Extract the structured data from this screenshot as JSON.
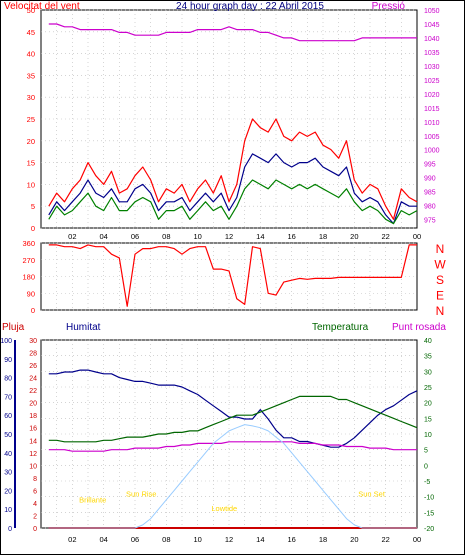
{
  "title": "24 hour graph day : 22 Abril 2015",
  "colors": {
    "background": "#ffffff",
    "wind": "#ff0000",
    "wind_avg": "#00008b",
    "wind_dir_gust": "#008000",
    "pressure": "#cc00cc",
    "rain": "#cc0000",
    "humidity": "#00008b",
    "temperature": "#006600",
    "dewpoint": "#cc00cc",
    "solar": "#99ccff",
    "sun_label": "#ffd700",
    "axis": "#000000"
  },
  "x_ticks": [
    "02",
    "04",
    "06",
    "08",
    "10",
    "12",
    "14",
    "16",
    "18",
    "20",
    "22",
    "00"
  ],
  "chart_data": [
    {
      "type": "line",
      "panel": "wind_pressure",
      "left_axis_label": "Velocitat del vent",
      "right_axis_label": "Pressió",
      "left_ticks": [
        0,
        5,
        10,
        15,
        20,
        25,
        30,
        35,
        40,
        45,
        50
      ],
      "right_ticks": [
        975,
        980,
        985,
        990,
        995,
        1000,
        1005,
        1010,
        1015,
        1020,
        1025,
        1030,
        1035,
        1040,
        1045,
        1050
      ],
      "ylim_left": [
        0,
        50
      ],
      "ylim_right": [
        972,
        1050
      ],
      "x_hours": [
        0.5,
        1,
        1.5,
        2,
        2.5,
        3,
        3.5,
        4,
        4.5,
        5,
        5.5,
        6,
        6.5,
        7,
        7.5,
        8,
        8.5,
        9,
        9.5,
        10,
        10.5,
        11,
        11.5,
        12,
        12.5,
        13,
        13.5,
        14,
        14.5,
        15,
        15.5,
        16,
        16.5,
        17,
        17.5,
        18,
        18.5,
        19,
        19.5,
        20,
        20.5,
        21,
        21.5,
        22,
        22.5,
        23,
        23.5,
        24
      ],
      "series": [
        {
          "role": "gust",
          "values": [
            5,
            8,
            6,
            9,
            11,
            15,
            12,
            10,
            13,
            8,
            9,
            12,
            14,
            11,
            6,
            9,
            8,
            10,
            6,
            9,
            11,
            8,
            12,
            6,
            10,
            20,
            25,
            23,
            22,
            25,
            21,
            20,
            22,
            21,
            22,
            19,
            18,
            16,
            20,
            11,
            8,
            10,
            9,
            5,
            2,
            9,
            7,
            6
          ]
        },
        {
          "role": "average",
          "values": [
            3,
            6,
            4,
            6,
            8,
            11,
            8,
            7,
            9,
            6,
            6,
            9,
            10,
            8,
            4,
            6,
            6,
            7,
            4,
            6,
            8,
            6,
            8,
            4,
            7,
            14,
            17,
            16,
            15,
            17,
            15,
            14,
            15,
            15,
            16,
            14,
            13,
            12,
            14,
            8,
            6,
            7,
            6,
            3,
            1,
            6,
            5,
            5
          ]
        },
        {
          "role": "direction_gust",
          "values": [
            2,
            5,
            3,
            4,
            6,
            8,
            5,
            4,
            7,
            4,
            4,
            6,
            7,
            6,
            2,
            4,
            4,
            5,
            2,
            4,
            6,
            4,
            5,
            2,
            5,
            9,
            11,
            10,
            9,
            11,
            10,
            9,
            10,
            9,
            10,
            9,
            8,
            7,
            9,
            6,
            4,
            5,
            4,
            2,
            1,
            4,
            3,
            4
          ]
        },
        {
          "role": "pressure",
          "values": [
            1045,
            1045,
            1044,
            1044,
            1043,
            1043,
            1043,
            1043,
            1043,
            1042,
            1042,
            1041,
            1041,
            1041,
            1041,
            1042,
            1042,
            1042,
            1042,
            1043,
            1043,
            1043,
            1043,
            1044,
            1043,
            1043,
            1043,
            1042,
            1042,
            1041,
            1040,
            1040,
            1039,
            1039,
            1039,
            1039,
            1039,
            1039,
            1039,
            1039,
            1040,
            1040,
            1040,
            1040,
            1040,
            1040,
            1040,
            1040
          ]
        }
      ]
    },
    {
      "type": "line",
      "panel": "wind_direction",
      "left_ticks": [
        0,
        90,
        180,
        270,
        360
      ],
      "right_labels": [
        "N",
        "W",
        "S",
        "E",
        "N"
      ],
      "ylim": [
        0,
        360
      ],
      "x_hours": [
        0.5,
        1,
        1.5,
        2,
        2.5,
        3,
        3.5,
        4,
        4.5,
        5,
        5.5,
        6,
        6.5,
        7,
        7.5,
        8,
        8.5,
        9,
        9.5,
        10,
        10.5,
        11,
        11.5,
        12,
        12.5,
        13,
        13.5,
        14,
        14.5,
        15,
        15.5,
        16,
        16.5,
        17,
        17.5,
        18,
        18.5,
        19,
        19.5,
        20,
        20.5,
        21,
        21.5,
        22,
        22.5,
        23,
        23.5,
        24
      ],
      "values": [
        350,
        350,
        340,
        340,
        330,
        350,
        340,
        340,
        300,
        280,
        20,
        300,
        330,
        330,
        340,
        340,
        330,
        300,
        330,
        340,
        340,
        220,
        220,
        210,
        60,
        30,
        340,
        330,
        90,
        80,
        150,
        160,
        170,
        165,
        170,
        170,
        170,
        175,
        175,
        175,
        175,
        175,
        175,
        175,
        175,
        175,
        350,
        350
      ]
    },
    {
      "type": "line",
      "panel": "rain_humidity_temperature",
      "labels": {
        "rain": "Pluja",
        "humidity": "Humitat",
        "temperature": "Temperatura",
        "dewpoint": "Punt rosada"
      },
      "left_ticks_rain": [
        0,
        2,
        4,
        6,
        8,
        10,
        12,
        14,
        16,
        18,
        20,
        22,
        24,
        26,
        28,
        30
      ],
      "left_ticks_humidity": [
        0,
        10,
        20,
        30,
        40,
        50,
        60,
        70,
        80,
        90,
        100
      ],
      "right_ticks": [
        -20,
        -15,
        -10,
        -5,
        0,
        5,
        10,
        15,
        20,
        25,
        30,
        35,
        40
      ],
      "ylim_rain": [
        0,
        30
      ],
      "ylim_humidity": [
        0,
        100
      ],
      "ylim_temp": [
        -20,
        40
      ],
      "x_hours": [
        0.5,
        1,
        1.5,
        2,
        2.5,
        3,
        3.5,
        4,
        4.5,
        5,
        5.5,
        6,
        6.5,
        7,
        7.5,
        8,
        8.5,
        9,
        9.5,
        10,
        10.5,
        11,
        11.5,
        12,
        12.5,
        13,
        13.5,
        14,
        14.5,
        15,
        15.5,
        16,
        16.5,
        17,
        17.5,
        18,
        18.5,
        19,
        19.5,
        20,
        20.5,
        21,
        21.5,
        22,
        22.5,
        23,
        23.5,
        24
      ],
      "series": [
        {
          "role": "humidity",
          "values": [
            82,
            82,
            83,
            83,
            84,
            84,
            83,
            82,
            82,
            80,
            79,
            78,
            78,
            77,
            76,
            76,
            76,
            75,
            73,
            71,
            68,
            65,
            62,
            59,
            59,
            58,
            58,
            63,
            58,
            52,
            48,
            48,
            46,
            46,
            45,
            44,
            43,
            43,
            45,
            48,
            52,
            56,
            60,
            63,
            65,
            68,
            71,
            73
          ]
        },
        {
          "role": "temperature",
          "values": [
            8,
            8,
            7.5,
            7.5,
            7.5,
            7.5,
            7.5,
            8,
            8,
            8.5,
            9,
            9,
            9,
            9.5,
            10,
            10,
            10.5,
            10.5,
            11,
            11,
            12,
            13,
            14,
            15,
            16,
            16,
            16,
            17,
            18,
            19,
            20,
            21,
            22,
            22,
            22,
            22,
            22,
            21,
            21,
            20,
            19,
            18,
            17,
            16,
            15,
            14,
            13,
            12
          ]
        },
        {
          "role": "dewpoint",
          "values": [
            5,
            5,
            5,
            4.5,
            4.5,
            4.5,
            4.5,
            4.5,
            5,
            5,
            5,
            5.5,
            5.5,
            5.5,
            5.5,
            6,
            6,
            6.5,
            6.5,
            7,
            7,
            7,
            7,
            7.5,
            7.5,
            7.5,
            7.5,
            7.5,
            7.5,
            7.5,
            7.5,
            7.5,
            7,
            7,
            7,
            6.5,
            6.5,
            6.5,
            6,
            6,
            6,
            5.5,
            5.5,
            5.5,
            5,
            5,
            5,
            5
          ]
        },
        {
          "role": "rain",
          "values": [
            0,
            0,
            0,
            0,
            0,
            0,
            0,
            0,
            0,
            0,
            0,
            0,
            0,
            0,
            0,
            0,
            0,
            0,
            0,
            0,
            0,
            0,
            0,
            0,
            0,
            0,
            0,
            0,
            0,
            0,
            0,
            0,
            0,
            0,
            0,
            0,
            0,
            0,
            0,
            0,
            0,
            0,
            0,
            0,
            0,
            0,
            0,
            0
          ]
        },
        {
          "role": "solar",
          "values": [
            0,
            0,
            0,
            0,
            0,
            0,
            0,
            0,
            0,
            0,
            0,
            0,
            0.5,
            1.5,
            3,
            4.5,
            6,
            7.5,
            9,
            10.5,
            12,
            13.5,
            14.5,
            15.5,
            16,
            16.5,
            16.3,
            16,
            15.5,
            14.5,
            13.5,
            12,
            10.5,
            9,
            7.5,
            6,
            4.5,
            3,
            1.5,
            0.5,
            0,
            0,
            0,
            0,
            0,
            0,
            0,
            0
          ]
        }
      ],
      "sun_labels": [
        {
          "text": "Brillante",
          "hour": 3.3,
          "level": 4.1
        },
        {
          "text": "Sun Rise",
          "hour": 6.4,
          "level": 5.0
        },
        {
          "text": "Lowtide",
          "hour": 11.7,
          "level": 2.7
        },
        {
          "text": "Sun Set",
          "hour": 21.1,
          "level": 5.0
        }
      ]
    }
  ]
}
